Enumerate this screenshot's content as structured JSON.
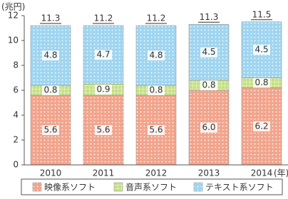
{
  "chart_data": {
    "type": "stacked_bar",
    "y_label": "(兆円)",
    "x_label": "(年)",
    "categories": [
      "2010",
      "2011",
      "2012",
      "2013",
      "2014"
    ],
    "series": [
      {
        "name": "映像系ソフト",
        "color": "#f2a48c",
        "values": [
          5.6,
          5.6,
          5.6,
          6.0,
          6.2
        ],
        "value_labels": [
          "5.6",
          "5.6",
          "5.6",
          "6.0",
          "6.2"
        ]
      },
      {
        "name": "音声系ソフト",
        "color": "#c5df86",
        "values": [
          0.8,
          0.9,
          0.8,
          0.8,
          0.8
        ],
        "value_labels": [
          "0.8",
          "0.9",
          "0.8",
          "0.8",
          "0.8"
        ]
      },
      {
        "name": "テキスト系ソフト",
        "color": "#9fd5f0",
        "values": [
          4.8,
          4.7,
          4.8,
          4.5,
          4.5
        ],
        "value_labels": [
          "4.8",
          "4.7",
          "4.8",
          "4.5",
          "4.5"
        ]
      }
    ],
    "totals": [
      11.3,
      11.2,
      11.2,
      11.3,
      11.5
    ],
    "ylim": [
      0,
      12
    ],
    "yticks": [
      0,
      2,
      4,
      6,
      8,
      10,
      12
    ],
    "grid": false
  }
}
